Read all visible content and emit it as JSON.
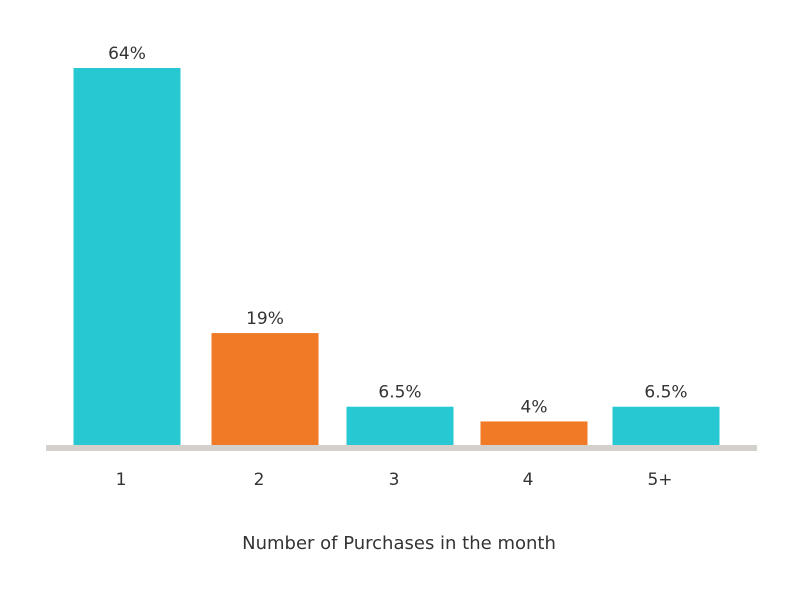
{
  "chart_data": {
    "type": "bar",
    "categories": [
      "1",
      "2",
      "3",
      "4",
      "5+"
    ],
    "values": [
      64,
      19,
      6.5,
      4,
      6.5
    ],
    "value_labels": [
      "64%",
      "19%",
      "6.5%",
      "4%",
      "6.5%"
    ],
    "title": "",
    "xlabel": "Number of Purchases in the month",
    "ylabel": "",
    "ylim": [
      0,
      64
    ],
    "grid": false,
    "legend": "none",
    "colors": {
      "teal": "#27c8d2",
      "orange": "#f07a26",
      "baseline": "#d4d0cb"
    },
    "bar_colors": [
      "teal",
      "orange",
      "teal",
      "orange",
      "teal"
    ]
  }
}
